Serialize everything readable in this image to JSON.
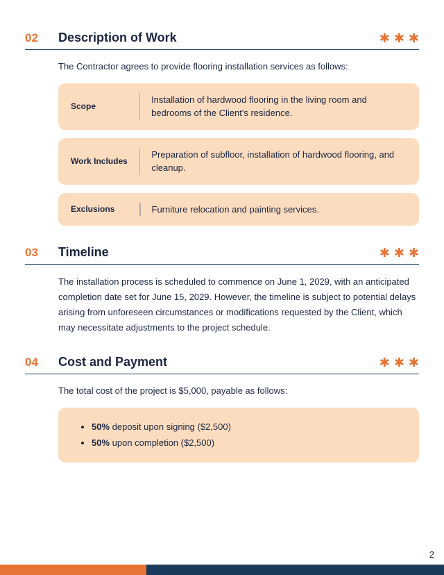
{
  "colors": {
    "accent_orange": "#e67435",
    "navy": "#1a3a5c",
    "card_bg": "#fcdcbf",
    "text": "#1a2540",
    "divider": "#6a7a8a",
    "background": "#ffffff"
  },
  "typography": {
    "font_family": "Segoe UI, Tahoma, Arial, sans-serif",
    "section_number_size": 17,
    "section_title_size": 18,
    "body_size": 13,
    "label_size": 12
  },
  "section02": {
    "number": "02",
    "title": "Description of Work",
    "intro": "The Contractor agrees to provide flooring installation services as follows:",
    "items": [
      {
        "label": "Scope",
        "value": "Installation of hardwood flooring in the living room and bedrooms of the Client's residence."
      },
      {
        "label": "Work Includes",
        "value": "Preparation of subfloor, installation of hardwood flooring, and cleanup."
      },
      {
        "label": "Exclusions",
        "value": "Furniture relocation and painting services."
      }
    ]
  },
  "section03": {
    "number": "03",
    "title": "Timeline",
    "body": "The installation process is scheduled to commence on June 1, 2029, with an anticipated completion date set for June 15, 2029. However, the timeline is subject to potential delays arising from unforeseen circumstances or modifications requested by the Client, which may necessitate adjustments to the project schedule."
  },
  "section04": {
    "number": "04",
    "title": "Cost and Payment",
    "intro": "The total cost of the project is $5,000, payable as follows:",
    "bullets": [
      {
        "bold": "50%",
        "text": " deposit upon signing ($2,500)"
      },
      {
        "bold": "50%",
        "text": " upon completion ($2,500)"
      }
    ]
  },
  "page_number": "2",
  "asterisk_glyph": "✱"
}
